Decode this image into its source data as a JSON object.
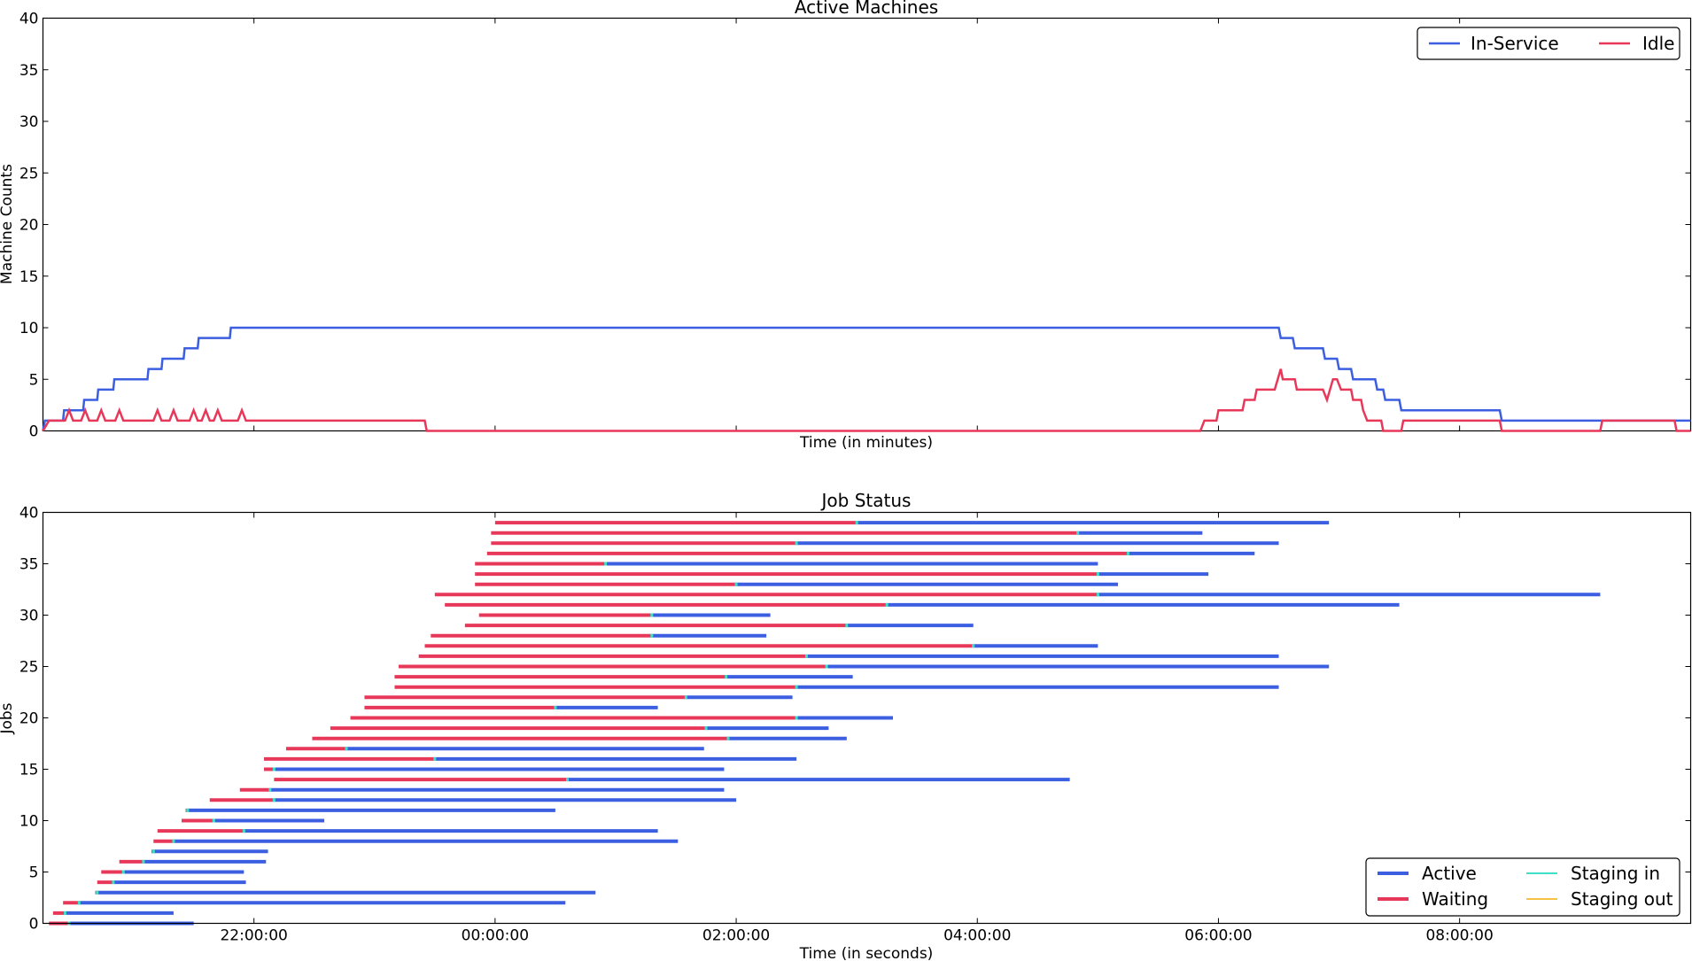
{
  "chart_data": [
    {
      "type": "line",
      "title": "Active Machines",
      "xlabel": "Time (in minutes)",
      "ylabel": "Machine Counts",
      "ylim": [
        0,
        40
      ],
      "yticks": [
        0,
        5,
        10,
        15,
        20,
        25,
        30,
        35,
        40
      ],
      "xticks": [],
      "xlim": [
        "20:15:00",
        "09:55:00"
      ],
      "grid": false,
      "legend": "top-right",
      "series": [
        {
          "name": "In-Service",
          "color": "#3b5fe0",
          "points": [
            [
              "20:15:00",
              0
            ],
            [
              "20:16:00",
              1
            ],
            [
              "20:25:00",
              1
            ],
            [
              "20:25:30",
              2
            ],
            [
              "20:35:00",
              2
            ],
            [
              "20:35:30",
              3
            ],
            [
              "20:42:00",
              3
            ],
            [
              "20:42:30",
              4
            ],
            [
              "20:50:00",
              4
            ],
            [
              "20:50:30",
              5
            ],
            [
              "21:07:00",
              5
            ],
            [
              "21:07:30",
              6
            ],
            [
              "21:14:00",
              6
            ],
            [
              "21:14:30",
              7
            ],
            [
              "21:25:00",
              7
            ],
            [
              "21:25:30",
              8
            ],
            [
              "21:32:00",
              8
            ],
            [
              "21:32:30",
              9
            ],
            [
              "21:48:00",
              9
            ],
            [
              "21:48:30",
              10
            ],
            [
              "06:30:00",
              10
            ],
            [
              "06:31:00",
              9
            ],
            [
              "06:37:00",
              9
            ],
            [
              "06:38:00",
              8
            ],
            [
              "06:52:00",
              8
            ],
            [
              "06:53:00",
              7
            ],
            [
              "06:59:00",
              7
            ],
            [
              "07:00:00",
              6
            ],
            [
              "07:06:00",
              6
            ],
            [
              "07:07:00",
              5
            ],
            [
              "07:18:00",
              5
            ],
            [
              "07:19:00",
              4
            ],
            [
              "07:22:00",
              4
            ],
            [
              "07:23:00",
              3
            ],
            [
              "07:30:00",
              3
            ],
            [
              "07:31:00",
              2
            ],
            [
              "08:20:00",
              2
            ],
            [
              "08:21:00",
              1
            ],
            [
              "09:55:00",
              1
            ]
          ]
        },
        {
          "name": "Idle",
          "color": "#e8385a",
          "points": [
            [
              "20:15:00",
              0
            ],
            [
              "20:18:00",
              1
            ],
            [
              "20:26:00",
              1
            ],
            [
              "20:28:00",
              2
            ],
            [
              "20:30:00",
              1
            ],
            [
              "20:34:00",
              1
            ],
            [
              "20:36:00",
              2
            ],
            [
              "20:38:00",
              1
            ],
            [
              "20:42:00",
              1
            ],
            [
              "20:44:00",
              2
            ],
            [
              "20:46:00",
              1
            ],
            [
              "20:51:00",
              1
            ],
            [
              "20:53:00",
              2
            ],
            [
              "20:55:00",
              1
            ],
            [
              "21:10:00",
              1
            ],
            [
              "21:12:00",
              2
            ],
            [
              "21:14:00",
              1
            ],
            [
              "21:18:00",
              1
            ],
            [
              "21:20:00",
              2
            ],
            [
              "21:22:00",
              1
            ],
            [
              "21:28:00",
              1
            ],
            [
              "21:30:00",
              2
            ],
            [
              "21:32:00",
              1
            ],
            [
              "21:34:00",
              1
            ],
            [
              "21:36:00",
              2
            ],
            [
              "21:38:00",
              1
            ],
            [
              "21:40:00",
              1
            ],
            [
              "21:42:00",
              2
            ],
            [
              "21:44:00",
              1
            ],
            [
              "21:52:00",
              1
            ],
            [
              "21:54:00",
              2
            ],
            [
              "21:56:00",
              1
            ],
            [
              "23:25:00",
              1
            ],
            [
              "23:26:00",
              0
            ],
            [
              "05:51:00",
              0
            ],
            [
              "05:53:00",
              1
            ],
            [
              "05:59:00",
              1
            ],
            [
              "06:00:00",
              2
            ],
            [
              "06:12:00",
              2
            ],
            [
              "06:13:00",
              3
            ],
            [
              "06:18:00",
              3
            ],
            [
              "06:19:00",
              4
            ],
            [
              "06:28:00",
              4
            ],
            [
              "06:31:00",
              6
            ],
            [
              "06:32:00",
              5
            ],
            [
              "06:38:00",
              5
            ],
            [
              "06:39:00",
              4
            ],
            [
              "06:52:00",
              4
            ],
            [
              "06:54:00",
              3
            ],
            [
              "06:57:00",
              5
            ],
            [
              "06:59:00",
              5
            ],
            [
              "07:01:00",
              4
            ],
            [
              "07:06:00",
              4
            ],
            [
              "07:07:00",
              3
            ],
            [
              "07:11:00",
              3
            ],
            [
              "07:12:00",
              2
            ],
            [
              "07:14:00",
              1
            ],
            [
              "07:21:00",
              1
            ],
            [
              "07:22:00",
              0
            ],
            [
              "07:31:00",
              0
            ],
            [
              "07:32:00",
              1
            ],
            [
              "08:20:00",
              1
            ],
            [
              "08:21:00",
              0
            ],
            [
              "09:10:00",
              0
            ],
            [
              "09:11:00",
              1
            ],
            [
              "09:47:00",
              1
            ],
            [
              "09:48:00",
              0
            ],
            [
              "09:55:00",
              0
            ]
          ]
        }
      ]
    },
    {
      "type": "gantt",
      "title": "Job Status",
      "xlabel": "Time (in seconds)",
      "ylabel": "Jobs",
      "ylim": [
        0,
        40
      ],
      "yticks": [
        0,
        5,
        10,
        15,
        20,
        25,
        30,
        35,
        40
      ],
      "xticks": [
        "22:00:00",
        "00:00:00",
        "02:00:00",
        "04:00:00",
        "06:00:00",
        "08:00:00"
      ],
      "xlim": [
        "20:15:00",
        "09:55:00"
      ],
      "grid": false,
      "legend": "bottom-right",
      "series": [
        {
          "name": "Active",
          "color": "#3b5fe0"
        },
        {
          "name": "Waiting",
          "color": "#e8385a"
        },
        {
          "name": "Staging in",
          "color": "#3fe0c8"
        },
        {
          "name": "Staging out",
          "color": "#f5c242"
        }
      ],
      "jobs": [
        {
          "job": 0,
          "wait": [
            "20:18:00",
            "20:28:00"
          ],
          "active": [
            "20:28:00",
            "21:30:00"
          ]
        },
        {
          "job": 1,
          "wait": [
            "20:20:00",
            "20:26:00"
          ],
          "active": [
            "20:26:00",
            "21:20:00"
          ]
        },
        {
          "job": 2,
          "wait": [
            "20:25:00",
            "20:33:00"
          ],
          "active": [
            "20:33:00",
            "00:35:00"
          ]
        },
        {
          "job": 3,
          "wait": [
            "20:41:00",
            "20:42:00"
          ],
          "active": [
            "20:42:00",
            "00:50:00"
          ]
        },
        {
          "job": 4,
          "wait": [
            "20:42:00",
            "20:50:00"
          ],
          "active": [
            "20:50:00",
            "21:56:00"
          ]
        },
        {
          "job": 5,
          "wait": [
            "20:44:00",
            "20:55:00"
          ],
          "active": [
            "20:55:00",
            "21:55:00"
          ]
        },
        {
          "job": 6,
          "wait": [
            "20:53:00",
            "21:05:00"
          ],
          "active": [
            "21:05:00",
            "22:06:00"
          ]
        },
        {
          "job": 7,
          "wait": [
            "21:09:00",
            "21:10:00"
          ],
          "active": [
            "21:10:00",
            "22:07:00"
          ]
        },
        {
          "job": 8,
          "wait": [
            "21:10:00",
            "21:20:00"
          ],
          "active": [
            "21:20:00",
            "01:31:00"
          ]
        },
        {
          "job": 9,
          "wait": [
            "21:12:00",
            "21:55:00"
          ],
          "active": [
            "21:55:00",
            "01:21:00"
          ]
        },
        {
          "job": 10,
          "wait": [
            "21:24:00",
            "21:40:00"
          ],
          "active": [
            "21:40:00",
            "22:35:00"
          ]
        },
        {
          "job": 11,
          "wait": [
            "21:26:00",
            "21:27:00"
          ],
          "active": [
            "21:27:00",
            "00:30:00"
          ]
        },
        {
          "job": 12,
          "wait": [
            "21:38:00",
            "22:10:00"
          ],
          "active": [
            "22:10:00",
            "02:00:00"
          ]
        },
        {
          "job": 13,
          "wait": [
            "21:53:00",
            "22:08:00"
          ],
          "active": [
            "22:08:00",
            "01:54:00"
          ]
        },
        {
          "job": 14,
          "wait": [
            "22:10:00",
            "00:36:00"
          ],
          "active": [
            "00:36:00",
            "04:46:00"
          ]
        },
        {
          "job": 15,
          "wait": [
            "22:05:00",
            "22:10:00"
          ],
          "active": [
            "22:10:00",
            "01:54:00"
          ]
        },
        {
          "job": 16,
          "wait": [
            "22:05:00",
            "23:30:00"
          ],
          "active": [
            "23:30:00",
            "02:30:00"
          ]
        },
        {
          "job": 17,
          "wait": [
            "22:16:00",
            "22:46:00"
          ],
          "active": [
            "22:46:00",
            "01:44:00"
          ]
        },
        {
          "job": 18,
          "wait": [
            "22:29:00",
            "01:56:00"
          ],
          "active": [
            "01:56:00",
            "02:55:00"
          ]
        },
        {
          "job": 19,
          "wait": [
            "22:38:00",
            "01:45:00"
          ],
          "active": [
            "01:45:00",
            "02:46:00"
          ]
        },
        {
          "job": 20,
          "wait": [
            "22:48:00",
            "02:30:00"
          ],
          "active": [
            "02:30:00",
            "03:18:00"
          ]
        },
        {
          "job": 21,
          "wait": [
            "22:55:00",
            "00:30:00"
          ],
          "active": [
            "00:30:00",
            "01:21:00"
          ]
        },
        {
          "job": 22,
          "wait": [
            "22:55:00",
            "01:35:00"
          ],
          "active": [
            "01:35:00",
            "02:28:00"
          ]
        },
        {
          "job": 23,
          "wait": [
            "23:10:00",
            "02:30:00"
          ],
          "active": [
            "02:30:00",
            "06:30:00"
          ]
        },
        {
          "job": 24,
          "wait": [
            "23:10:00",
            "01:55:00"
          ],
          "active": [
            "01:55:00",
            "02:58:00"
          ]
        },
        {
          "job": 25,
          "wait": [
            "23:12:00",
            "02:45:00"
          ],
          "active": [
            "02:45:00",
            "06:55:00"
          ]
        },
        {
          "job": 26,
          "wait": [
            "23:22:00",
            "02:35:00"
          ],
          "active": [
            "02:35:00",
            "06:30:00"
          ]
        },
        {
          "job": 27,
          "wait": [
            "23:25:00",
            "03:58:00"
          ],
          "active": [
            "03:58:00",
            "05:00:00"
          ]
        },
        {
          "job": 28,
          "wait": [
            "23:28:00",
            "01:18:00"
          ],
          "active": [
            "01:18:00",
            "02:15:00"
          ]
        },
        {
          "job": 29,
          "wait": [
            "23:45:00",
            "02:55:00"
          ],
          "active": [
            "02:55:00",
            "03:58:00"
          ]
        },
        {
          "job": 30,
          "wait": [
            "23:52:00",
            "01:18:00"
          ],
          "active": [
            "01:18:00",
            "02:17:00"
          ]
        },
        {
          "job": 31,
          "wait": [
            "23:35:00",
            "03:15:00"
          ],
          "active": [
            "03:15:00",
            "07:30:00"
          ]
        },
        {
          "job": 32,
          "wait": [
            "23:30:00",
            "05:00:00"
          ],
          "active": [
            "05:00:00",
            "09:10:00"
          ]
        },
        {
          "job": 33,
          "wait": [
            "23:50:00",
            "02:00:00"
          ],
          "active": [
            "02:00:00",
            "05:10:00"
          ]
        },
        {
          "job": 34,
          "wait": [
            "23:50:00",
            "05:00:00"
          ],
          "active": [
            "05:00:00",
            "05:55:00"
          ]
        },
        {
          "job": 35,
          "wait": [
            "23:50:00",
            "00:55:00"
          ],
          "active": [
            "00:55:00",
            "05:00:00"
          ]
        },
        {
          "job": 36,
          "wait": [
            "23:56:00",
            "05:15:00"
          ],
          "active": [
            "05:15:00",
            "06:18:00"
          ]
        },
        {
          "job": 37,
          "wait": [
            "23:58:00",
            "02:30:00"
          ],
          "active": [
            "02:30:00",
            "06:30:00"
          ]
        },
        {
          "job": 38,
          "wait": [
            "23:58:00",
            "04:50:00"
          ],
          "active": [
            "04:50:00",
            "05:52:00"
          ]
        },
        {
          "job": 39,
          "wait": [
            "00:00:00",
            "03:00:00"
          ],
          "active": [
            "03:00:00",
            "06:55:00"
          ]
        }
      ]
    }
  ]
}
